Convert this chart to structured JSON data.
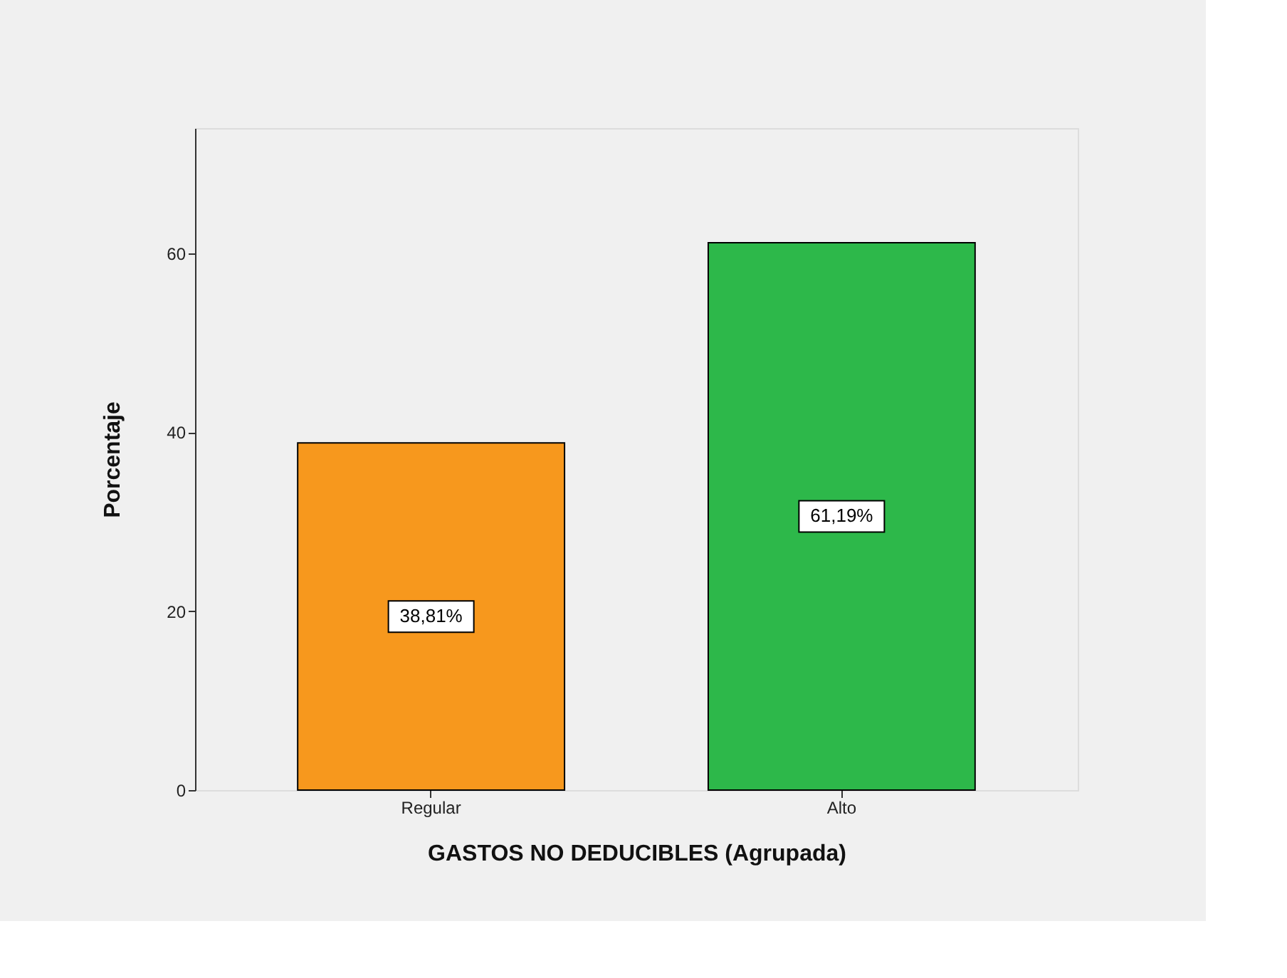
{
  "chart_data": {
    "type": "bar",
    "xlabel": "GASTOS NO DEDUCIBLES (Agrupada)",
    "ylabel": "Porcentaje",
    "categories": [
      "Regular",
      "Alto"
    ],
    "values": [
      38.81,
      61.19
    ],
    "colors": [
      "#f7981d",
      "#2db84a"
    ],
    "value_labels": [
      "38,81%",
      "61,19%"
    ],
    "ylim": [
      0,
      74
    ],
    "yticks": [
      0,
      20,
      40,
      60
    ],
    "grid": false,
    "legend": false
  }
}
